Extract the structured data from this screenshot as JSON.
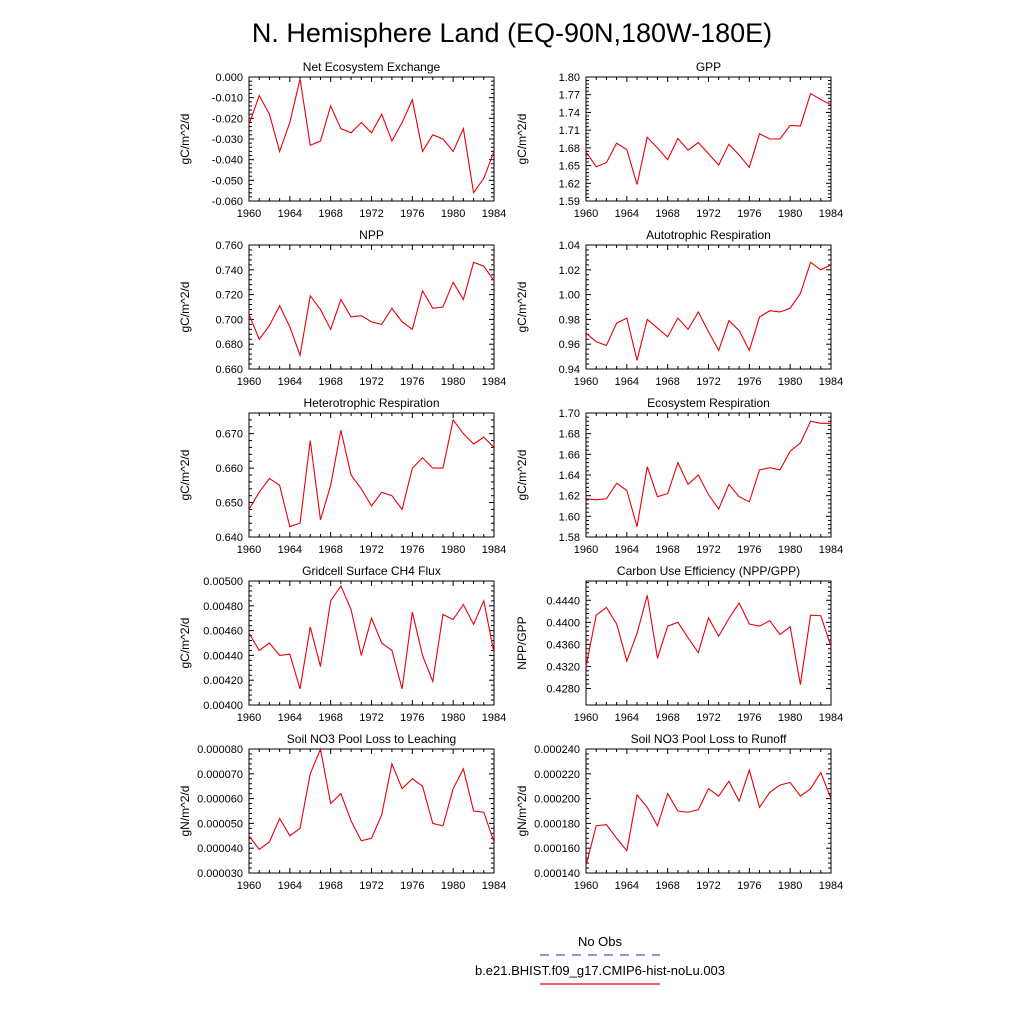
{
  "title": "N. Hemisphere Land (EQ-90N,180W-180E)",
  "legend": {
    "obs_label": "No Obs",
    "obs_color": "#5555cc",
    "case_label": "b.e21.BHIST.f09_g17.CMIP6-hist-noLu.003",
    "case_color": "#e8000b"
  },
  "line_color": "#e8000b",
  "chart_data": [
    {
      "type": "line",
      "title": "Net Ecosystem Exchange",
      "ylabel": "gC/m^2/d",
      "xlim": [
        1960,
        1984
      ],
      "ylim": [
        -0.06,
        0.0
      ],
      "xticks": [
        "1960",
        "1964",
        "1968",
        "1972",
        "1976",
        "1980",
        "1984"
      ],
      "yticks": [
        "-0.060",
        "-0.050",
        "-0.040",
        "-0.030",
        "-0.020",
        "-0.010",
        "0.000"
      ],
      "x": [
        1960,
        1961,
        1962,
        1963,
        1964,
        1965,
        1966,
        1967,
        1968,
        1969,
        1970,
        1971,
        1972,
        1973,
        1974,
        1975,
        1976,
        1977,
        1978,
        1979,
        1980,
        1981,
        1982,
        1983,
        1984
      ],
      "values": [
        -0.023,
        -0.009,
        -0.018,
        -0.036,
        -0.022,
        -0.001,
        -0.033,
        -0.031,
        -0.014,
        -0.025,
        -0.027,
        -0.022,
        -0.027,
        -0.018,
        -0.031,
        -0.022,
        -0.011,
        -0.036,
        -0.028,
        -0.03,
        -0.036,
        -0.025,
        -0.056,
        -0.049,
        -0.036
      ]
    },
    {
      "type": "line",
      "title": "GPP",
      "ylabel": "gC/m^2/d",
      "xlim": [
        1960,
        1984
      ],
      "ylim": [
        1.59,
        1.8
      ],
      "xticks": [
        "1960",
        "1964",
        "1968",
        "1972",
        "1976",
        "1980",
        "1984"
      ],
      "yticks": [
        "1.59",
        "1.62",
        "1.65",
        "1.68",
        "1.71",
        "1.74",
        "1.77",
        "1.80"
      ],
      "x": [
        1960,
        1961,
        1962,
        1963,
        1964,
        1965,
        1966,
        1967,
        1968,
        1969,
        1970,
        1971,
        1972,
        1973,
        1974,
        1975,
        1976,
        1977,
        1978,
        1979,
        1980,
        1981,
        1982,
        1983,
        1984
      ],
      "values": [
        1.673,
        1.648,
        1.655,
        1.688,
        1.677,
        1.618,
        1.698,
        1.68,
        1.66,
        1.696,
        1.676,
        1.689,
        1.67,
        1.651,
        1.686,
        1.668,
        1.647,
        1.704,
        1.695,
        1.695,
        1.718,
        1.717,
        1.772,
        1.762,
        1.753
      ]
    },
    {
      "type": "line",
      "title": "NPP",
      "ylabel": "gC/m^2/d",
      "xlim": [
        1960,
        1984
      ],
      "ylim": [
        0.66,
        0.76
      ],
      "xticks": [
        "1960",
        "1964",
        "1968",
        "1972",
        "1976",
        "1980",
        "1984"
      ],
      "yticks": [
        "0.660",
        "0.680",
        "0.700",
        "0.720",
        "0.740",
        "0.760"
      ],
      "x": [
        1960,
        1961,
        1962,
        1963,
        1964,
        1965,
        1966,
        1967,
        1968,
        1969,
        1970,
        1971,
        1972,
        1973,
        1974,
        1975,
        1976,
        1977,
        1978,
        1979,
        1980,
        1981,
        1982,
        1983,
        1984
      ],
      "values": [
        0.704,
        0.684,
        0.695,
        0.711,
        0.694,
        0.671,
        0.719,
        0.708,
        0.692,
        0.716,
        0.702,
        0.703,
        0.698,
        0.696,
        0.709,
        0.698,
        0.692,
        0.723,
        0.709,
        0.71,
        0.73,
        0.716,
        0.746,
        0.743,
        0.731
      ]
    },
    {
      "type": "line",
      "title": "Autotrophic Respiration",
      "ylabel": "gC/m^2/d",
      "xlim": [
        1960,
        1984
      ],
      "ylim": [
        0.94,
        1.04
      ],
      "xticks": [
        "1960",
        "1964",
        "1968",
        "1972",
        "1976",
        "1980",
        "1984"
      ],
      "yticks": [
        "0.94",
        "0.96",
        "0.98",
        "1.00",
        "1.02",
        "1.04"
      ],
      "x": [
        1960,
        1961,
        1962,
        1963,
        1964,
        1965,
        1966,
        1967,
        1968,
        1969,
        1970,
        1971,
        1972,
        1973,
        1974,
        1975,
        1976,
        1977,
        1978,
        1979,
        1980,
        1981,
        1982,
        1983,
        1984
      ],
      "values": [
        0.969,
        0.962,
        0.959,
        0.977,
        0.981,
        0.947,
        0.98,
        0.973,
        0.966,
        0.981,
        0.972,
        0.986,
        0.97,
        0.955,
        0.979,
        0.971,
        0.955,
        0.982,
        0.987,
        0.986,
        0.989,
        1.001,
        1.026,
        1.02,
        1.024
      ]
    },
    {
      "type": "line",
      "title": "Heterotrophic Respiration",
      "ylabel": "gC/m^2/d",
      "xlim": [
        1960,
        1984
      ],
      "ylim": [
        0.64,
        0.676
      ],
      "xticks": [
        "1960",
        "1964",
        "1968",
        "1972",
        "1976",
        "1980",
        "1984"
      ],
      "yticks": [
        "0.640",
        "0.650",
        "0.660",
        "0.670"
      ],
      "x": [
        1960,
        1961,
        1962,
        1963,
        1964,
        1965,
        1966,
        1967,
        1968,
        1969,
        1970,
        1971,
        1972,
        1973,
        1974,
        1975,
        1976,
        1977,
        1978,
        1979,
        1980,
        1981,
        1982,
        1983,
        1984
      ],
      "values": [
        0.648,
        0.653,
        0.657,
        0.655,
        0.643,
        0.644,
        0.668,
        0.645,
        0.655,
        0.671,
        0.658,
        0.654,
        0.649,
        0.653,
        0.652,
        0.648,
        0.66,
        0.663,
        0.66,
        0.66,
        0.674,
        0.67,
        0.667,
        0.669,
        0.666
      ]
    },
    {
      "type": "line",
      "title": "Ecosystem Respiration",
      "ylabel": "gC/m^2/d",
      "xlim": [
        1960,
        1984
      ],
      "ylim": [
        1.58,
        1.7
      ],
      "xticks": [
        "1960",
        "1964",
        "1968",
        "1972",
        "1976",
        "1980",
        "1984"
      ],
      "yticks": [
        "1.58",
        "1.60",
        "1.62",
        "1.64",
        "1.66",
        "1.68",
        "1.70"
      ],
      "x": [
        1960,
        1961,
        1962,
        1963,
        1964,
        1965,
        1966,
        1967,
        1968,
        1969,
        1970,
        1971,
        1972,
        1973,
        1974,
        1975,
        1976,
        1977,
        1978,
        1979,
        1980,
        1981,
        1982,
        1983,
        1984
      ],
      "values": [
        1.617,
        1.616,
        1.617,
        1.632,
        1.625,
        1.59,
        1.648,
        1.619,
        1.622,
        1.652,
        1.631,
        1.64,
        1.621,
        1.607,
        1.631,
        1.619,
        1.614,
        1.645,
        1.647,
        1.645,
        1.663,
        1.671,
        1.692,
        1.69,
        1.69
      ]
    },
    {
      "type": "line",
      "title": "Gridcell Surface CH4 Flux",
      "ylabel": "gC/m^2/d",
      "xlim": [
        1960,
        1984
      ],
      "ylim": [
        0.004,
        0.005
      ],
      "xticks": [
        "1960",
        "1964",
        "1968",
        "1972",
        "1976",
        "1980",
        "1984"
      ],
      "yticks": [
        "0.00400",
        "0.00420",
        "0.00440",
        "0.00460",
        "0.00480",
        "0.00500"
      ],
      "x": [
        1960,
        1961,
        1962,
        1963,
        1964,
        1965,
        1966,
        1967,
        1968,
        1969,
        1970,
        1971,
        1972,
        1973,
        1974,
        1975,
        1976,
        1977,
        1978,
        1979,
        1980,
        1981,
        1982,
        1983,
        1984
      ],
      "values": [
        0.00458,
        0.00444,
        0.0045,
        0.0044,
        0.00441,
        0.00413,
        0.00463,
        0.00431,
        0.00484,
        0.00496,
        0.00477,
        0.0044,
        0.0047,
        0.0045,
        0.00444,
        0.00413,
        0.00475,
        0.0044,
        0.00419,
        0.00473,
        0.00469,
        0.00481,
        0.00465,
        0.00484,
        0.00442
      ]
    },
    {
      "type": "line",
      "title": "Carbon Use Efficiency (NPP/GPP)",
      "ylabel": "NPP/GPP",
      "xlim": [
        1960,
        1984
      ],
      "ylim": [
        0.425,
        0.4475
      ],
      "xticks": [
        "1960",
        "1964",
        "1968",
        "1972",
        "1976",
        "1980",
        "1984"
      ],
      "yticks": [
        "0.4280",
        "0.4320",
        "0.4360",
        "0.4400",
        "0.4440"
      ],
      "x": [
        1960,
        1961,
        1962,
        1963,
        1964,
        1965,
        1966,
        1967,
        1968,
        1969,
        1970,
        1971,
        1972,
        1973,
        1974,
        1975,
        1976,
        1977,
        1978,
        1979,
        1980,
        1981,
        1982,
        1983,
        1984
      ],
      "values": [
        0.432,
        0.4413,
        0.4427,
        0.4397,
        0.433,
        0.438,
        0.4449,
        0.4335,
        0.4393,
        0.44,
        0.4372,
        0.4345,
        0.4408,
        0.4375,
        0.4407,
        0.4435,
        0.4397,
        0.4393,
        0.4403,
        0.4378,
        0.4392,
        0.4287,
        0.4413,
        0.4412,
        0.4356
      ]
    },
    {
      "type": "line",
      "title": "Soil NO3 Pool Loss to Leaching",
      "ylabel": "gN/m^2/d",
      "xlim": [
        1960,
        1984
      ],
      "ylim": [
        3e-05,
        8e-05
      ],
      "xticks": [
        "1960",
        "1964",
        "1968",
        "1972",
        "1976",
        "1980",
        "1984"
      ],
      "yticks": [
        "0.000030",
        "0.000040",
        "0.000050",
        "0.000060",
        "0.000070",
        "0.000080"
      ],
      "x": [
        1960,
        1961,
        1962,
        1963,
        1964,
        1965,
        1966,
        1967,
        1968,
        1969,
        1970,
        1971,
        1972,
        1973,
        1974,
        1975,
        1976,
        1977,
        1978,
        1979,
        1980,
        1981,
        1982,
        1983,
        1984
      ],
      "values": [
        4.5e-05,
        3.95e-05,
        4.25e-05,
        5.2e-05,
        4.5e-05,
        4.8e-05,
        7e-05,
        8e-05,
        5.8e-05,
        6.2e-05,
        5.1e-05,
        4.3e-05,
        4.4e-05,
        5.35e-05,
        7.4e-05,
        6.4e-05,
        6.8e-05,
        6.5e-05,
        5e-05,
        4.9e-05,
        6.4e-05,
        7.2e-05,
        5.5e-05,
        5.45e-05,
        4.25e-05
      ]
    },
    {
      "type": "line",
      "title": "Soil NO3 Pool Loss to Runoff",
      "ylabel": "gN/m^2/d",
      "xlim": [
        1960,
        1984
      ],
      "ylim": [
        0.00014,
        0.00024
      ],
      "xticks": [
        "1960",
        "1964",
        "1968",
        "1972",
        "1976",
        "1980",
        "1984"
      ],
      "yticks": [
        "0.000140",
        "0.000160",
        "0.000180",
        "0.000200",
        "0.000220",
        "0.000240"
      ],
      "x": [
        1960,
        1961,
        1962,
        1963,
        1964,
        1965,
        1966,
        1967,
        1968,
        1969,
        1970,
        1971,
        1972,
        1973,
        1974,
        1975,
        1976,
        1977,
        1978,
        1979,
        1980,
        1981,
        1982,
        1983,
        1984
      ],
      "values": [
        0.000146,
        0.000178,
        0.000179,
        0.000168,
        0.000158,
        0.000203,
        0.000193,
        0.000178,
        0.000204,
        0.00019,
        0.000189,
        0.000191,
        0.000208,
        0.000202,
        0.000214,
        0.000198,
        0.000223,
        0.000193,
        0.000205,
        0.000211,
        0.000213,
        0.000202,
        0.000208,
        0.000221,
        0.0002
      ]
    }
  ]
}
